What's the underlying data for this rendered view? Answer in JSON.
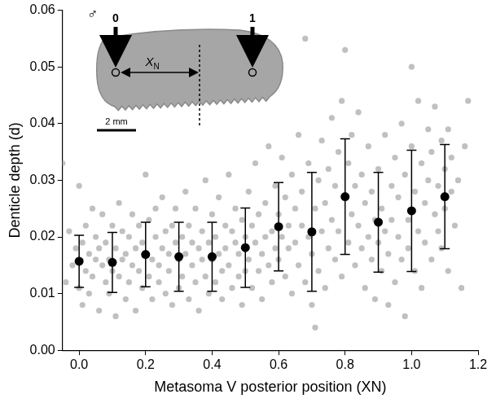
{
  "chart_data": {
    "type": "scatter",
    "xlabel": "Metasoma V posterior position (XN)",
    "ylabel": "Denticle depth (d)",
    "xlim": [
      -0.05,
      1.2
    ],
    "ylim": [
      0,
      0.06
    ],
    "xticks": [
      {
        "value": 0,
        "label": "0.0"
      },
      {
        "value": 0.2,
        "label": "0.2"
      },
      {
        "value": 0.4,
        "label": "0.4"
      },
      {
        "value": 0.6,
        "label": "0.6"
      },
      {
        "value": 0.8,
        "label": "0.8"
      },
      {
        "value": 1.0,
        "label": "1.0"
      },
      {
        "value": 1.2,
        "label": "1.2"
      }
    ],
    "yticks": [
      {
        "value": 0,
        "label": "0.00"
      },
      {
        "value": 0.01,
        "label": "0.01"
      },
      {
        "value": 0.02,
        "label": "0.02"
      },
      {
        "value": 0.03,
        "label": "0.03"
      },
      {
        "value": 0.04,
        "label": "0.04"
      },
      {
        "value": 0.05,
        "label": "0.05"
      },
      {
        "value": 0.06,
        "label": "0.06"
      }
    ],
    "grid": false,
    "inset": {
      "symbol": "♂",
      "marks": [
        "0",
        "1"
      ],
      "distance": "X",
      "distance_sub": "N",
      "scale_bar": "2 mm"
    },
    "series": [
      {
        "color": "#c0c0c0",
        "marker": "circle",
        "x": [
          -0.05,
          -0.04,
          -0.03,
          -0.02,
          -0.01,
          0.0,
          0.0,
          0.0,
          0.01,
          0.01,
          0.02,
          0.02,
          0.03,
          0.03,
          0.04,
          0.04,
          0.05,
          0.05,
          0.06,
          0.06,
          0.07,
          0.07,
          0.08,
          0.08,
          0.09,
          0.09,
          0.1,
          0.1,
          0.11,
          0.11,
          0.12,
          0.12,
          0.13,
          0.13,
          0.14,
          0.14,
          0.15,
          0.15,
          0.16,
          0.16,
          0.17,
          0.17,
          0.18,
          0.18,
          0.19,
          0.19,
          0.2,
          0.2,
          0.21,
          0.21,
          0.22,
          0.22,
          0.23,
          0.23,
          0.24,
          0.24,
          0.25,
          0.25,
          0.26,
          0.26,
          0.27,
          0.27,
          0.28,
          0.28,
          0.29,
          0.29,
          0.3,
          0.3,
          0.31,
          0.31,
          0.32,
          0.32,
          0.33,
          0.33,
          0.34,
          0.34,
          0.35,
          0.35,
          0.36,
          0.36,
          0.37,
          0.37,
          0.38,
          0.38,
          0.39,
          0.39,
          0.4,
          0.4,
          0.41,
          0.41,
          0.42,
          0.42,
          0.43,
          0.43,
          0.44,
          0.44,
          0.45,
          0.45,
          0.46,
          0.46,
          0.47,
          0.47,
          0.48,
          0.48,
          0.49,
          0.49,
          0.5,
          0.5,
          0.51,
          0.51,
          0.52,
          0.52,
          0.53,
          0.53,
          0.54,
          0.54,
          0.55,
          0.55,
          0.56,
          0.56,
          0.57,
          0.57,
          0.58,
          0.58,
          0.59,
          0.59,
          0.6,
          0.6,
          0.61,
          0.61,
          0.62,
          0.62,
          0.63,
          0.63,
          0.64,
          0.64,
          0.65,
          0.65,
          0.66,
          0.66,
          0.67,
          0.67,
          0.68,
          0.68,
          0.69,
          0.69,
          0.7,
          0.7,
          0.71,
          0.71,
          0.72,
          0.72,
          0.73,
          0.73,
          0.74,
          0.74,
          0.75,
          0.75,
          0.76,
          0.76,
          0.77,
          0.77,
          0.78,
          0.78,
          0.79,
          0.79,
          0.8,
          0.8,
          0.81,
          0.81,
          0.82,
          0.82,
          0.83,
          0.83,
          0.84,
          0.84,
          0.85,
          0.85,
          0.86,
          0.86,
          0.87,
          0.87,
          0.88,
          0.88,
          0.89,
          0.89,
          0.9,
          0.9,
          0.91,
          0.91,
          0.92,
          0.92,
          0.93,
          0.93,
          0.94,
          0.94,
          0.95,
          0.95,
          0.96,
          0.96,
          0.97,
          0.97,
          0.98,
          0.98,
          0.99,
          0.99,
          1.0,
          1.0,
          1.01,
          1.01,
          1.02,
          1.02,
          1.03,
          1.03,
          1.04,
          1.04,
          1.05,
          1.05,
          1.06,
          1.06,
          1.07,
          1.07,
          1.08,
          1.08,
          1.09,
          1.09,
          1.1,
          1.1,
          1.11,
          1.11,
          1.12,
          1.12,
          1.13,
          1.14,
          1.15,
          1.17,
          1.16
        ],
        "values": [
          0.033,
          0.012,
          0.021,
          0.015,
          0.018,
          0.029,
          0.016,
          0.011,
          0.019,
          0.008,
          0.014,
          0.022,
          0.017,
          0.01,
          0.025,
          0.013,
          0.016,
          0.02,
          0.007,
          0.018,
          0.015,
          0.024,
          0.012,
          0.019,
          0.016,
          0.01,
          0.022,
          0.014,
          0.018,
          0.006,
          0.026,
          0.013,
          0.016,
          0.021,
          0.009,
          0.017,
          0.02,
          0.012,
          0.024,
          0.015,
          0.018,
          0.007,
          0.022,
          0.014,
          0.019,
          0.011,
          0.031,
          0.017,
          0.013,
          0.023,
          0.016,
          0.009,
          0.02,
          0.025,
          0.015,
          0.012,
          0.027,
          0.018,
          0.01,
          0.021,
          0.017,
          0.014,
          0.022,
          0.008,
          0.019,
          0.025,
          0.016,
          0.011,
          0.02,
          0.013,
          0.028,
          0.017,
          0.009,
          0.022,
          0.015,
          0.019,
          0.025,
          0.012,
          0.018,
          0.007,
          0.021,
          0.016,
          0.03,
          0.013,
          0.019,
          0.01,
          0.024,
          0.016,
          0.012,
          0.02,
          0.017,
          0.027,
          0.014,
          0.009,
          0.022,
          0.018,
          0.015,
          0.031,
          0.011,
          0.021,
          0.019,
          0.025,
          0.013,
          0.017,
          0.023,
          0.008,
          0.02,
          0.014,
          0.028,
          0.016,
          0.011,
          0.022,
          0.019,
          0.033,
          0.014,
          0.024,
          0.017,
          0.009,
          0.026,
          0.02,
          0.036,
          0.015,
          0.021,
          0.012,
          0.029,
          0.018,
          0.024,
          0.016,
          0.034,
          0.02,
          0.013,
          0.027,
          0.022,
          0.018,
          0.031,
          0.01,
          0.025,
          0.019,
          0.038,
          0.015,
          0.022,
          0.028,
          0.012,
          0.055,
          0.02,
          0.033,
          0.017,
          0.008,
          0.025,
          0.004,
          0.03,
          0.014,
          0.021,
          0.037,
          0.011,
          0.026,
          0.018,
          0.032,
          0.023,
          0.041,
          0.016,
          0.029,
          0.035,
          0.021,
          0.044,
          0.013,
          0.027,
          0.053,
          0.019,
          0.033,
          0.024,
          0.038,
          0.015,
          0.029,
          0.022,
          0.042,
          0.018,
          0.031,
          0.011,
          0.026,
          0.036,
          0.02,
          0.016,
          0.028,
          0.023,
          0.009,
          0.032,
          0.019,
          0.025,
          0.014,
          0.038,
          0.021,
          0.017,
          0.008,
          0.029,
          0.023,
          0.034,
          0.012,
          0.02,
          0.027,
          0.016,
          0.04,
          0.031,
          0.006,
          0.023,
          0.018,
          0.036,
          0.05,
          0.014,
          0.028,
          0.044,
          0.021,
          0.033,
          0.011,
          0.026,
          0.019,
          0.039,
          0.03,
          0.016,
          0.035,
          0.024,
          0.043,
          0.029,
          0.021,
          0.037,
          0.018,
          0.032,
          0.025,
          0.039,
          0.014,
          0.028,
          0.034,
          0.022,
          0.03,
          0.011,
          0.044,
          0.036
        ]
      },
      {
        "color": "#000000",
        "marker": "circle",
        "x": [
          0,
          0.1,
          0.2,
          0.3,
          0.4,
          0.5,
          0.6,
          0.7,
          0.8,
          0.9,
          1.0,
          1.1
        ],
        "values": [
          0.0157,
          0.0155,
          0.0169,
          0.0165,
          0.0165,
          0.0181,
          0.0218,
          0.0209,
          0.0271,
          0.0226,
          0.0246,
          0.0271
        ],
        "error": [
          0.0046,
          0.0053,
          0.0057,
          0.0061,
          0.0061,
          0.007,
          0.0078,
          0.0105,
          0.0102,
          0.0088,
          0.0107,
          0.0092
        ]
      }
    ]
  }
}
